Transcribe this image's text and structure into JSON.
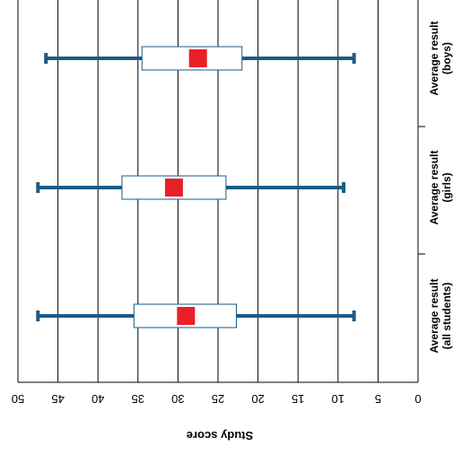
{
  "chart_data": {
    "type": "box",
    "orientation": "horizontal, rendered rotated 180 degrees (value axis runs right-to-left, text upside down)",
    "ylabel": "Study score",
    "value_axis": {
      "min": 0,
      "max": 50,
      "ticks": [
        0,
        5,
        10,
        15,
        20,
        25,
        30,
        35,
        40,
        45,
        50
      ]
    },
    "grid": "vertical lines at each tick",
    "colors": {
      "whisker": "#1a5a87",
      "box_fill": "#ffffff",
      "box_stroke": "#1a5a87",
      "mean_marker": "#e8202a",
      "grid": "#000000"
    },
    "categories": [
      {
        "lines": [
          "Average result",
          "(all students)"
        ],
        "min": 8,
        "q1": 22.7,
        "q3": 35.5,
        "max": 47.5,
        "mean": 29
      },
      {
        "lines": [
          "Average result",
          "(girls)"
        ],
        "min": 9.3,
        "q1": 24,
        "q3": 37,
        "max": 47.5,
        "mean": 30.5
      },
      {
        "lines": [
          "Average result",
          "(boys)"
        ],
        "min": 8,
        "q1": 22,
        "q3": 34.5,
        "max": 46.5,
        "mean": 27.5
      }
    ]
  }
}
